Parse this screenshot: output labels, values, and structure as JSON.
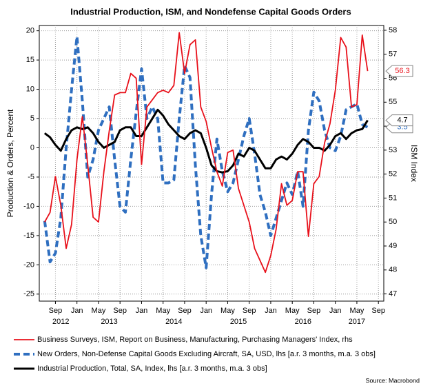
{
  "chart_data": {
    "type": "line",
    "title": "Industrial Production, ISM, and Nondefense Capital Goods Orders",
    "ylabel": "Production & Orders, Percent",
    "y2label": "ISM Index",
    "source": "Source: Macrobond",
    "x": [
      "2012-07",
      "2012-08",
      "2012-09",
      "2012-10",
      "2012-11",
      "2012-12",
      "2013-01",
      "2013-02",
      "2013-03",
      "2013-04",
      "2013-05",
      "2013-06",
      "2013-07",
      "2013-08",
      "2013-09",
      "2013-10",
      "2013-11",
      "2013-12",
      "2014-01",
      "2014-02",
      "2014-03",
      "2014-04",
      "2014-05",
      "2014-06",
      "2014-07",
      "2014-08",
      "2014-09",
      "2014-10",
      "2014-11",
      "2014-12",
      "2015-01",
      "2015-02",
      "2015-03",
      "2015-04",
      "2015-05",
      "2015-06",
      "2015-07",
      "2015-08",
      "2015-09",
      "2015-10",
      "2015-11",
      "2015-12",
      "2016-01",
      "2016-02",
      "2016-03",
      "2016-04",
      "2016-05",
      "2016-06",
      "2016-07",
      "2016-08",
      "2016-09",
      "2016-10",
      "2016-11",
      "2016-12",
      "2017-01",
      "2017-02",
      "2017-03",
      "2017-04",
      "2017-05",
      "2017-06",
      "2017-07"
    ],
    "series": [
      {
        "name": "Business Surveys, ISM, Report on Business, Manufacturing, Purchasing Managers' Index, rhs",
        "color": "#e8101a",
        "axis": "y2",
        "width": 1.8,
        "dashed": false,
        "values": [
          50.0,
          50.4,
          51.9,
          50.7,
          48.9,
          49.9,
          52.6,
          54.4,
          52.4,
          50.2,
          50.0,
          52.1,
          53.8,
          55.3,
          55.4,
          55.4,
          56.2,
          56.0,
          52.4,
          54.8,
          55.1,
          55.4,
          55.5,
          55.4,
          55.7,
          57.9,
          56.2,
          57.4,
          57.6,
          54.8,
          54.2,
          53.1,
          52.1,
          51.5,
          52.9,
          53.0,
          51.4,
          50.7,
          50.0,
          48.9,
          48.4,
          47.9,
          48.6,
          49.7,
          51.6,
          50.7,
          50.9,
          52.1,
          52.1,
          49.4,
          51.6,
          51.9,
          53.3,
          54.1,
          55.5,
          57.7,
          57.3,
          54.8,
          54.9,
          57.8,
          56.3
        ]
      },
      {
        "name": "New Orders, Non-Defense Capital Goods Excluding Aircraft, SA, USD, lhs [a.r. 3 months, m.a. 3 obs]",
        "color": "#2f6fc0",
        "axis": "y",
        "width": 4,
        "dashed": true,
        "values": [
          -12.5,
          -19.5,
          -18,
          -12,
          0,
          10,
          19,
          8,
          -5,
          -2,
          3,
          5,
          7,
          -2,
          -10,
          -11,
          -2,
          6,
          13.5,
          5,
          7,
          5,
          -6,
          -6,
          -5.5,
          5,
          14,
          12,
          -3,
          -15,
          -20.5,
          -8,
          1.5,
          -4,
          -7.5,
          -6,
          -2,
          2,
          5,
          -1,
          -8,
          -11,
          -15,
          -12,
          -9,
          -6,
          -8,
          -4,
          -10,
          3,
          9.5,
          8,
          3,
          0,
          -0.5,
          2,
          6.5,
          7,
          7.5,
          4,
          3.5
        ]
      },
      {
        "name": "Industrial Production, Total, SA, Index, lhs [a.r. 3 months, m.a. 3 obs]",
        "color": "#000000",
        "axis": "y",
        "width": 3,
        "dashed": false,
        "values": [
          2.5,
          1.8,
          0.5,
          -0.5,
          1.5,
          3,
          3.5,
          3.2,
          3.5,
          2.5,
          1,
          0,
          0.5,
          1,
          3,
          3.5,
          3.5,
          2,
          2,
          3.5,
          5,
          6.5,
          5.5,
          4,
          3,
          2,
          1.5,
          2.5,
          3,
          2.5,
          0,
          -3,
          -4,
          -4.2,
          -4,
          -3,
          -1,
          -1.5,
          0,
          -0.5,
          -2,
          -3.5,
          -3.5,
          -2,
          -1.5,
          -2,
          -1,
          0.5,
          1.5,
          1,
          0,
          0,
          -0.5,
          0.5,
          2,
          2.5,
          1.5,
          2.5,
          3,
          3.2,
          4.7
        ]
      }
    ],
    "xlim": [
      "2012-06",
      "2017-10"
    ],
    "xticks": [
      {
        "value": "2012-09",
        "label": "Sep"
      },
      {
        "value": "2013-01",
        "label": "Jan"
      },
      {
        "value": "2013-05",
        "label": "May"
      },
      {
        "value": "2013-09",
        "label": "Sep"
      },
      {
        "value": "2014-01",
        "label": "Jan"
      },
      {
        "value": "2014-05",
        "label": "May"
      },
      {
        "value": "2014-09",
        "label": "Sep"
      },
      {
        "value": "2015-01",
        "label": "Jan"
      },
      {
        "value": "2015-05",
        "label": "May"
      },
      {
        "value": "2015-09",
        "label": "Sep"
      },
      {
        "value": "2016-01",
        "label": "Jan"
      },
      {
        "value": "2016-05",
        "label": "May"
      },
      {
        "value": "2016-09",
        "label": "Sep"
      },
      {
        "value": "2017-01",
        "label": "Jan"
      },
      {
        "value": "2017-05",
        "label": "May"
      },
      {
        "value": "2017-09",
        "label": "Sep"
      }
    ],
    "xyears": [
      {
        "value": "2012-10",
        "label": "2012"
      },
      {
        "value": "2013-07",
        "label": "2013"
      },
      {
        "value": "2014-07",
        "label": "2014"
      },
      {
        "value": "2015-07",
        "label": "2015"
      },
      {
        "value": "2016-07",
        "label": "2016"
      },
      {
        "value": "2017-05",
        "label": "2017"
      }
    ],
    "ylim": [
      -26.2,
      20.9
    ],
    "yticks": [
      -25,
      -20,
      -15,
      -10,
      -5,
      0,
      5,
      10,
      15,
      20
    ],
    "y2lim": [
      46.7,
      58.2
    ],
    "y2ticks": [
      47,
      48,
      49,
      50,
      51,
      52,
      53,
      54,
      55,
      56,
      57,
      58
    ],
    "grid": true
  }
}
